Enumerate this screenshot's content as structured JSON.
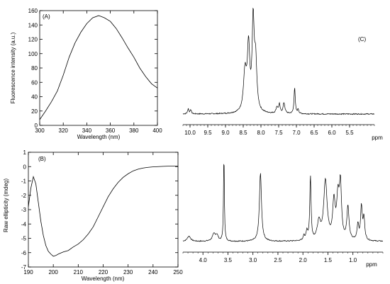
{
  "chart_data": [
    {
      "type": "line",
      "panel_label": "(A)",
      "xlabel": "Wavelength (nm)",
      "ylabel": "Fluorescence intensity (a.u.)",
      "xlim": [
        300,
        400
      ],
      "ylim": [
        0,
        160
      ],
      "xticks": [
        300,
        320,
        340,
        360,
        380,
        400
      ],
      "yticks": [
        0,
        20,
        40,
        60,
        80,
        100,
        120,
        140,
        160
      ],
      "grid": false,
      "series": [
        {
          "x": [
            300,
            305,
            310,
            315,
            320,
            325,
            330,
            335,
            340,
            345,
            350,
            352,
            355,
            360,
            365,
            370,
            375,
            380,
            385,
            390,
            395,
            400
          ],
          "values": [
            8,
            20,
            33,
            48,
            70,
            95,
            115,
            130,
            142,
            150,
            153,
            152,
            150,
            145,
            135,
            122,
            108,
            95,
            80,
            68,
            58,
            52
          ]
        }
      ]
    },
    {
      "type": "line",
      "panel_label": "(B)",
      "xlabel": "Wavelength (nm)",
      "ylabel": "Raw ellipticity (mdeg)",
      "xlim": [
        190,
        250
      ],
      "ylim": [
        -7,
        1
      ],
      "xticks": [
        190,
        200,
        210,
        220,
        230,
        240,
        250
      ],
      "yticks": [
        -7,
        -6,
        -5,
        -4,
        -3,
        -2,
        -1,
        0,
        1
      ],
      "grid": false,
      "series": [
        {
          "x": [
            190,
            191,
            192,
            193,
            194,
            195,
            196,
            197,
            198,
            199,
            200,
            201,
            202,
            204,
            206,
            208,
            210,
            212,
            214,
            216,
            218,
            220,
            222,
            224,
            226,
            228,
            230,
            232,
            234,
            236,
            238,
            240,
            242,
            244,
            246,
            248,
            250
          ],
          "values": [
            -2.8,
            -1.5,
            -0.7,
            -1.2,
            -2.5,
            -3.8,
            -4.8,
            -5.5,
            -5.9,
            -6.1,
            -6.25,
            -6.2,
            -6.1,
            -5.95,
            -5.85,
            -5.6,
            -5.4,
            -5.1,
            -4.7,
            -4.2,
            -3.5,
            -2.8,
            -2.1,
            -1.55,
            -1.1,
            -0.75,
            -0.5,
            -0.3,
            -0.18,
            -0.1,
            -0.05,
            -0.02,
            0.0,
            0.02,
            0.03,
            0.03,
            0.03
          ]
        }
      ]
    },
    {
      "type": "line",
      "panel_label": "(C)",
      "xlabel": "",
      "unit": "ppm",
      "xlim": [
        10.2,
        4.8
      ],
      "xticks": [
        10.0,
        9.5,
        9.0,
        8.5,
        8.0,
        7.5,
        7.0,
        6.5,
        6.0,
        5.5
      ],
      "x_reversed": true,
      "y_axis_shown": false,
      "baseline": 0,
      "peaks": [
        {
          "ppm": 10.05,
          "height": 0.06,
          "width": 0.02
        },
        {
          "ppm": 9.98,
          "height": 0.05,
          "width": 0.02
        },
        {
          "ppm": 8.45,
          "height": 0.45,
          "width": 0.05
        },
        {
          "ppm": 8.35,
          "height": 0.72,
          "width": 0.04
        },
        {
          "ppm": 8.22,
          "height": 1.0,
          "width": 0.035
        },
        {
          "ppm": 8.15,
          "height": 0.55,
          "width": 0.04
        },
        {
          "ppm": 7.55,
          "height": 0.07,
          "width": 0.03
        },
        {
          "ppm": 7.48,
          "height": 0.1,
          "width": 0.025
        },
        {
          "ppm": 7.35,
          "height": 0.12,
          "width": 0.03
        },
        {
          "ppm": 7.05,
          "height": 0.3,
          "width": 0.02
        },
        {
          "ppm": 6.95,
          "height": 0.05,
          "width": 0.02
        }
      ]
    },
    {
      "type": "line",
      "panel_label": "",
      "xlabel": "",
      "unit": "ppm",
      "xlim": [
        4.4,
        0.4
      ],
      "xticks": [
        4.0,
        3.5,
        3.0,
        2.5,
        2.0,
        1.5,
        1.0
      ],
      "x_reversed": true,
      "y_axis_shown": false,
      "baseline": 0,
      "peaks": [
        {
          "ppm": 4.28,
          "height": 0.06,
          "width": 0.04
        },
        {
          "ppm": 3.78,
          "height": 0.08,
          "width": 0.04
        },
        {
          "ppm": 3.72,
          "height": 0.06,
          "width": 0.03
        },
        {
          "ppm": 3.58,
          "height": 1.0,
          "width": 0.01
        },
        {
          "ppm": 2.85,
          "height": 0.78,
          "width": 0.025
        },
        {
          "ppm": 1.98,
          "height": 0.06,
          "width": 0.015
        },
        {
          "ppm": 1.92,
          "height": 0.1,
          "width": 0.02
        },
        {
          "ppm": 1.85,
          "height": 0.73,
          "width": 0.015
        },
        {
          "ppm": 1.68,
          "height": 0.2,
          "width": 0.04
        },
        {
          "ppm": 1.55,
          "height": 0.68,
          "width": 0.04
        },
        {
          "ppm": 1.38,
          "height": 0.42,
          "width": 0.03
        },
        {
          "ppm": 1.3,
          "height": 0.45,
          "width": 0.03
        },
        {
          "ppm": 1.25,
          "height": 0.6,
          "width": 0.025
        },
        {
          "ppm": 1.1,
          "height": 0.38,
          "width": 0.025
        },
        {
          "ppm": 0.9,
          "height": 0.18,
          "width": 0.02
        },
        {
          "ppm": 0.83,
          "height": 0.38,
          "width": 0.02
        },
        {
          "ppm": 0.78,
          "height": 0.25,
          "width": 0.02
        }
      ]
    }
  ]
}
